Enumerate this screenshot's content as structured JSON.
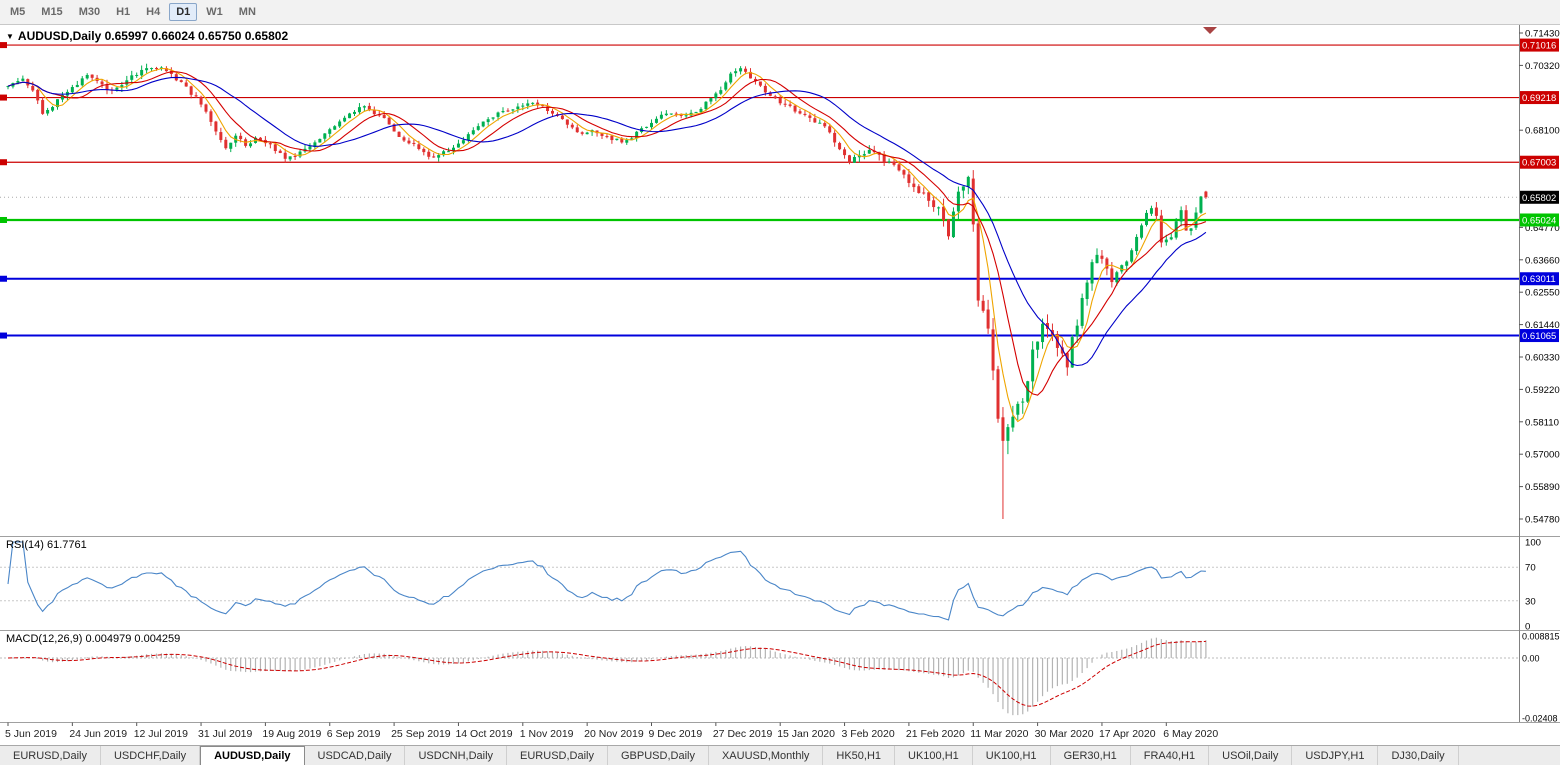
{
  "toolbar": {
    "timeframes": [
      {
        "label": "M5",
        "selected": false
      },
      {
        "label": "M15",
        "selected": false
      },
      {
        "label": "M30",
        "selected": false
      },
      {
        "label": "H1",
        "selected": false
      },
      {
        "label": "H4",
        "selected": false
      },
      {
        "label": "D1",
        "selected": true
      },
      {
        "label": "W1",
        "selected": false
      },
      {
        "label": "MN",
        "selected": false
      }
    ]
  },
  "chart": {
    "collapse_icon": "▼",
    "title_text": "AUDUSD,Daily  0.65997 0.66024 0.65750 0.65802",
    "rsi_label": "RSI(14) 61.7761",
    "macd_label": "MACD(12,26,9) 0.004979 0.004259"
  },
  "chart_data": {
    "type": "candlestick",
    "symbol": "AUDUSD",
    "period": "Daily",
    "x_labels": [
      "5 Jun 2019",
      "24 Jun 2019",
      "12 Jul 2019",
      "31 Jul 2019",
      "19 Aug 2019",
      "6 Sep 2019",
      "25 Sep 2019",
      "14 Oct 2019",
      "1 Nov 2019",
      "20 Nov 2019",
      "9 Dec 2019",
      "27 Dec 2019",
      "15 Jan 2020",
      "3 Feb 2020",
      "21 Feb 2020",
      "11 Mar 2020",
      "30 Mar 2020",
      "17 Apr 2020",
      "6 May 2020"
    ],
    "bars_per_label": 13,
    "total_bars": 243,
    "y_top_value": 0.7143,
    "y_bottom_value": 0.5478,
    "y_ticks": [
      0.7143,
      0.7032,
      0.681,
      0.6477,
      0.6366,
      0.6255,
      0.6144,
      0.6033,
      0.5922,
      0.5811,
      0.57,
      0.5589,
      0.5478
    ],
    "levels": [
      {
        "value": 0.71016,
        "label": "0.71016",
        "color": "#cc0000",
        "width": 1.2
      },
      {
        "value": 0.69218,
        "label": "0.69218",
        "color": "#cc0000",
        "width": 1.2
      },
      {
        "value": 0.67003,
        "label": "0.67003",
        "color": "#cc0000",
        "width": 1.2
      },
      {
        "value": 0.65024,
        "label": "0.65024",
        "color": "#00c400",
        "width": 2.2
      },
      {
        "value": 0.63011,
        "label": "0.63011",
        "color": "#0000dc",
        "width": 2
      },
      {
        "value": 0.61065,
        "label": "0.61065",
        "color": "#0000dc",
        "width": 2
      }
    ],
    "current_price": {
      "value": 0.65802,
      "label": "0.65802"
    },
    "last_bar": {
      "open": 0.65997,
      "high": 0.66024,
      "low": 0.6575,
      "close": 0.65802
    },
    "crash_low": {
      "bar": 201,
      "low": 0.5478
    },
    "price_anchors": [
      [
        0,
        0.696
      ],
      [
        3,
        0.6992
      ],
      [
        5,
        0.694
      ],
      [
        7,
        0.6872
      ],
      [
        9,
        0.689
      ],
      [
        11,
        0.6928
      ],
      [
        14,
        0.6965
      ],
      [
        16,
        0.6998
      ],
      [
        18,
        0.698
      ],
      [
        20,
        0.6942
      ],
      [
        22,
        0.696
      ],
      [
        24,
        0.6978
      ],
      [
        26,
        0.7005
      ],
      [
        29,
        0.7022
      ],
      [
        31,
        0.703
      ],
      [
        33,
        0.7
      ],
      [
        35,
        0.6972
      ],
      [
        38,
        0.692
      ],
      [
        40,
        0.6872
      ],
      [
        42,
        0.68
      ],
      [
        44,
        0.6748
      ],
      [
        46,
        0.679
      ],
      [
        48,
        0.6762
      ],
      [
        50,
        0.678
      ],
      [
        52,
        0.6768
      ],
      [
        54,
        0.6745
      ],
      [
        56,
        0.6712
      ],
      [
        58,
        0.6725
      ],
      [
        60,
        0.6748
      ],
      [
        62,
        0.6772
      ],
      [
        64,
        0.68
      ],
      [
        66,
        0.6822
      ],
      [
        68,
        0.685
      ],
      [
        70,
        0.6875
      ],
      [
        72,
        0.6892
      ],
      [
        74,
        0.687
      ],
      [
        76,
        0.6848
      ],
      [
        78,
        0.6802
      ],
      [
        80,
        0.6778
      ],
      [
        82,
        0.6762
      ],
      [
        84,
        0.6735
      ],
      [
        86,
        0.6715
      ],
      [
        88,
        0.6732
      ],
      [
        90,
        0.675
      ],
      [
        92,
        0.6778
      ],
      [
        94,
        0.681
      ],
      [
        96,
        0.6838
      ],
      [
        98,
        0.6858
      ],
      [
        100,
        0.6872
      ],
      [
        102,
        0.6885
      ],
      [
        104,
        0.6898
      ],
      [
        106,
        0.6906
      ],
      [
        108,
        0.6888
      ],
      [
        110,
        0.6868
      ],
      [
        112,
        0.6845
      ],
      [
        114,
        0.6822
      ],
      [
        116,
        0.6792
      ],
      [
        118,
        0.6805
      ],
      [
        120,
        0.6795
      ],
      [
        122,
        0.6782
      ],
      [
        124,
        0.6772
      ],
      [
        126,
        0.6788
      ],
      [
        128,
        0.6812
      ],
      [
        130,
        0.684
      ],
      [
        132,
        0.6858
      ],
      [
        134,
        0.6872
      ],
      [
        136,
        0.6855
      ],
      [
        138,
        0.6868
      ],
      [
        140,
        0.6888
      ],
      [
        142,
        0.6918
      ],
      [
        144,
        0.6952
      ],
      [
        146,
        0.7
      ],
      [
        148,
        0.7026
      ],
      [
        150,
        0.6992
      ],
      [
        152,
        0.6958
      ],
      [
        154,
        0.6928
      ],
      [
        156,
        0.6905
      ],
      [
        158,
        0.6888
      ],
      [
        160,
        0.6868
      ],
      [
        162,
        0.6852
      ],
      [
        164,
        0.6832
      ],
      [
        166,
        0.6808
      ],
      [
        168,
        0.6742
      ],
      [
        170,
        0.6702
      ],
      [
        172,
        0.6722
      ],
      [
        174,
        0.6738
      ],
      [
        176,
        0.6718
      ],
      [
        178,
        0.6702
      ],
      [
        180,
        0.6682
      ],
      [
        182,
        0.6628
      ],
      [
        184,
        0.6605
      ],
      [
        186,
        0.6572
      ],
      [
        188,
        0.654
      ],
      [
        190,
        0.6458
      ],
      [
        192,
        0.6598
      ],
      [
        194,
        0.6638
      ],
      [
        195,
        0.6505
      ],
      [
        196,
        0.6235
      ],
      [
        197,
        0.6188
      ],
      [
        198,
        0.6122
      ],
      [
        199,
        0.6002
      ],
      [
        200,
        0.5802
      ],
      [
        201,
        0.5748
      ],
      [
        202,
        0.5805
      ],
      [
        203,
        0.5832
      ],
      [
        204,
        0.5858
      ],
      [
        205,
        0.5898
      ],
      [
        206,
        0.5965
      ],
      [
        207,
        0.6062
      ],
      [
        208,
        0.6092
      ],
      [
        209,
        0.6135
      ],
      [
        210,
        0.6142
      ],
      [
        211,
        0.6102
      ],
      [
        212,
        0.6062
      ],
      [
        213,
        0.6032
      ],
      [
        214,
        0.5998
      ],
      [
        215,
        0.6088
      ],
      [
        216,
        0.6152
      ],
      [
        217,
        0.6235
      ],
      [
        218,
        0.6292
      ],
      [
        219,
        0.6352
      ],
      [
        220,
        0.6388
      ],
      [
        221,
        0.6362
      ],
      [
        222,
        0.6338
      ],
      [
        223,
        0.6295
      ],
      [
        224,
        0.6318
      ],
      [
        225,
        0.6338
      ],
      [
        226,
        0.6368
      ],
      [
        227,
        0.6398
      ],
      [
        228,
        0.6448
      ],
      [
        229,
        0.6492
      ],
      [
        230,
        0.6518
      ],
      [
        231,
        0.6552
      ],
      [
        232,
        0.6508
      ],
      [
        233,
        0.6422
      ],
      [
        234,
        0.6432
      ],
      [
        235,
        0.6438
      ],
      [
        236,
        0.6498
      ],
      [
        237,
        0.6528
      ],
      [
        238,
        0.6472
      ],
      [
        239,
        0.6482
      ],
      [
        240,
        0.6528
      ],
      [
        241,
        0.6588
      ],
      [
        242,
        0.65802
      ]
    ],
    "vol_anchors": [
      [
        0,
        0.003
      ],
      [
        60,
        0.0026
      ],
      [
        120,
        0.0024
      ],
      [
        160,
        0.0026
      ],
      [
        185,
        0.0042
      ],
      [
        193,
        0.006
      ],
      [
        196,
        0.0085
      ],
      [
        204,
        0.0095
      ],
      [
        209,
        0.0062
      ],
      [
        214,
        0.0055
      ],
      [
        220,
        0.0048
      ],
      [
        228,
        0.0042
      ],
      [
        242,
        0.0034
      ]
    ],
    "moving_averages": [
      {
        "period": 5,
        "color": "#efa500"
      },
      {
        "period": 10,
        "color": "#d40000"
      },
      {
        "period": 20,
        "color": "#0000c8"
      }
    ],
    "rsi": {
      "period": 14,
      "current": "61.7761",
      "levels": [
        100,
        70,
        30,
        0
      ],
      "color": "#4a86c8"
    },
    "macd": {
      "fast": 12,
      "slow": 26,
      "signal": 9,
      "current_macd": "0.004979",
      "current_signal": "0.004259",
      "scale_max": 0.008815,
      "scale_min": -0.02408,
      "axis_labels": [
        "0.008815",
        "0.00",
        "-0.02408"
      ]
    },
    "colors": {
      "up": "#00b050",
      "down": "#e03030",
      "background": "#ffffff"
    }
  },
  "tabs": {
    "items": [
      {
        "label": "EURUSD,Daily",
        "selected": false
      },
      {
        "label": "USDCHF,Daily",
        "selected": false
      },
      {
        "label": "AUDUSD,Daily",
        "selected": true
      },
      {
        "label": "USDCAD,Daily",
        "selected": false
      },
      {
        "label": "USDCNH,Daily",
        "selected": false
      },
      {
        "label": "EURUSD,Daily",
        "selected": false
      },
      {
        "label": "GBPUSD,Daily",
        "selected": false
      },
      {
        "label": "XAUUSD,Monthly",
        "selected": false
      },
      {
        "label": "HK50,H1",
        "selected": false
      },
      {
        "label": "UK100,H1",
        "selected": false
      },
      {
        "label": "UK100,H1",
        "selected": false
      },
      {
        "label": "GER30,H1",
        "selected": false
      },
      {
        "label": "FRA40,H1",
        "selected": false
      },
      {
        "label": "USOil,Daily",
        "selected": false
      },
      {
        "label": "USDJPY,H1",
        "selected": false
      },
      {
        "label": "DJ30,Daily",
        "selected": false
      }
    ]
  }
}
